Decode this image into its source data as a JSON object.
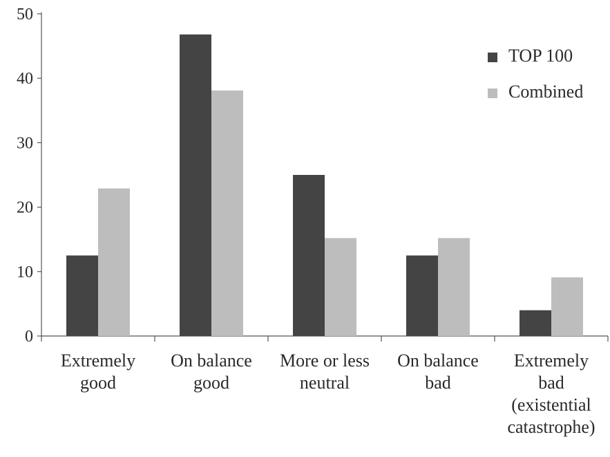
{
  "chart_data": {
    "type": "bar",
    "categories": [
      [
        "Extremely",
        "good"
      ],
      [
        "On balance",
        "good"
      ],
      [
        "More or less",
        "neutral"
      ],
      [
        "On balance",
        "bad"
      ],
      [
        "Extremely",
        "bad",
        "(existential",
        "catastrophe)"
      ]
    ],
    "series": [
      {
        "name": "TOP 100",
        "color": "#444444",
        "values": [
          12.5,
          46.8,
          25.0,
          12.5,
          4.0
        ]
      },
      {
        "name": "Combined",
        "color": "#bdbdbd",
        "values": [
          22.9,
          38.1,
          15.2,
          15.2,
          9.1
        ]
      }
    ],
    "yticks": [
      0,
      10,
      20,
      30,
      40,
      50
    ],
    "ylim": [
      0,
      50
    ],
    "legend_position": "top-right",
    "grid": false
  }
}
